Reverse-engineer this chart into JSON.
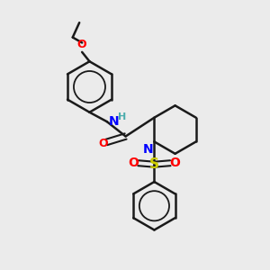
{
  "background_color": "#ebebeb",
  "bond_color": "#1a1a1a",
  "nitrogen_color": "#0000ff",
  "oxygen_color": "#ff0000",
  "sulfur_color": "#cccc00",
  "hydrogen_color": "#4aacac",
  "figsize": [
    3.0,
    3.0
  ],
  "dpi": 100,
  "xlim": [
    0,
    10
  ],
  "ylim": [
    0,
    10
  ]
}
